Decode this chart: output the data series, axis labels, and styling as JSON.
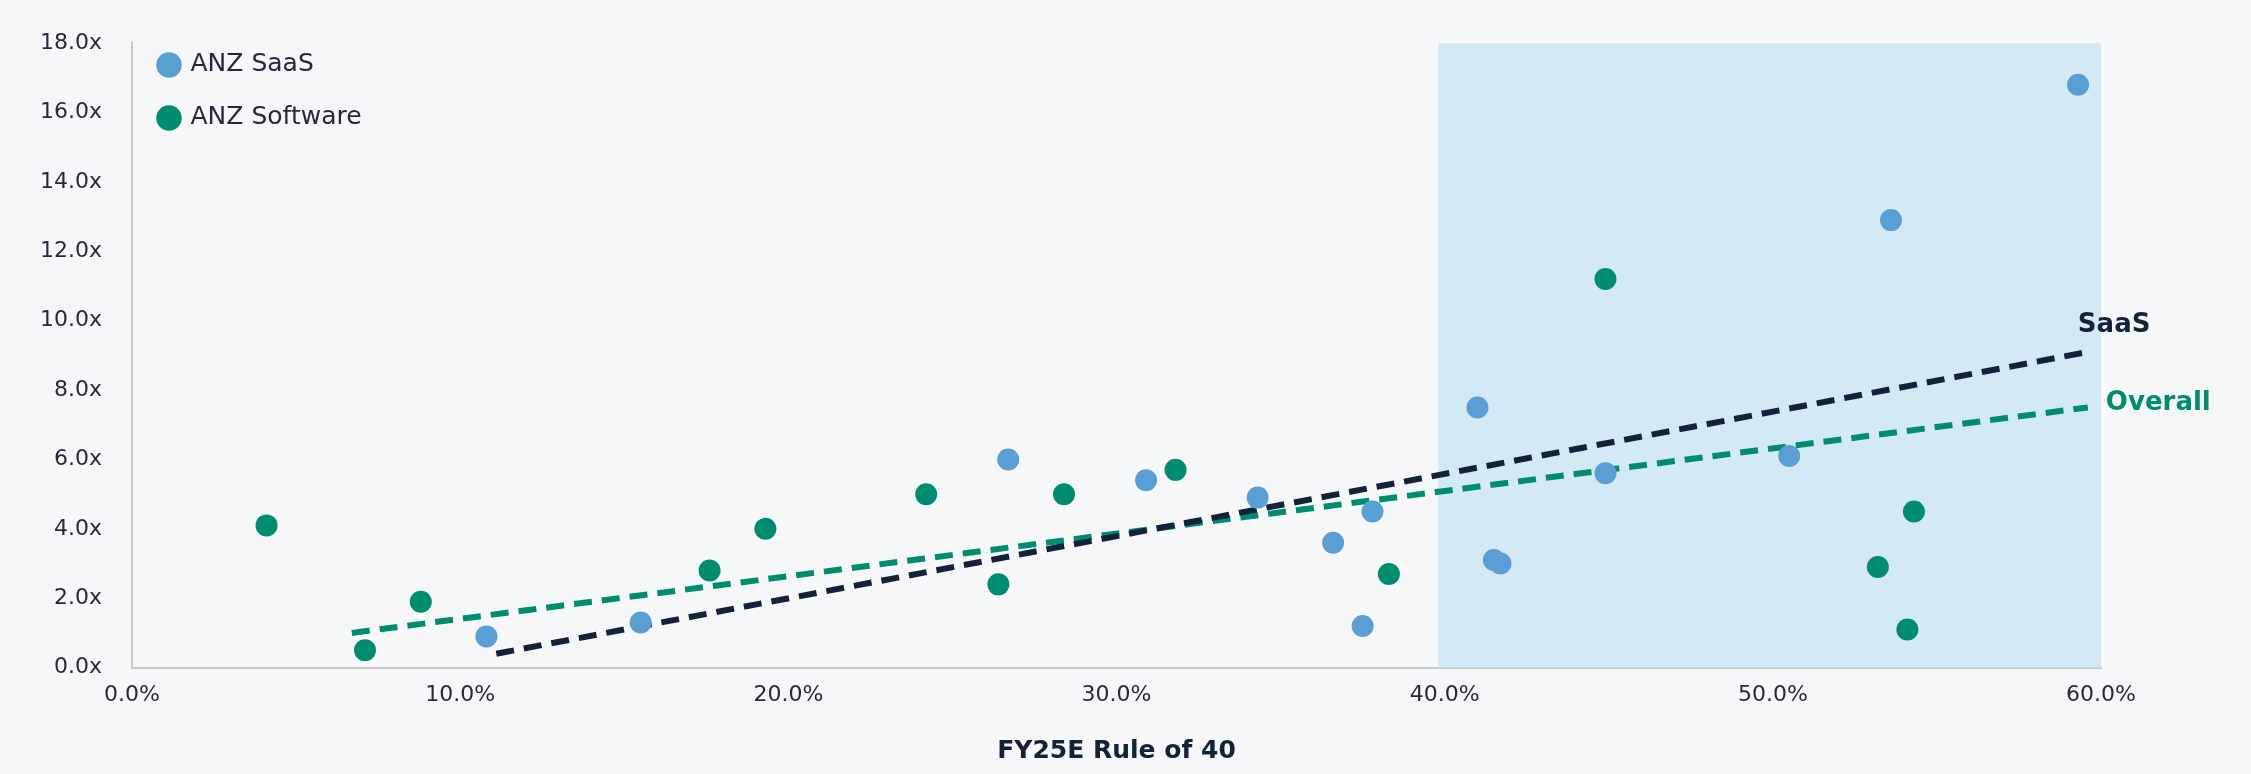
{
  "chart_data": {
    "type": "scatter",
    "xlabel": "FY25E Rule of 40",
    "xlim": [
      0,
      60
    ],
    "xticks": [
      {
        "value": 0,
        "label": "0.0%"
      },
      {
        "value": 10,
        "label": "10.0%"
      },
      {
        "value": 20,
        "label": "20.0%"
      },
      {
        "value": 30,
        "label": "30.0%"
      },
      {
        "value": 40,
        "label": "40.0%"
      },
      {
        "value": 50,
        "label": "50.0%"
      },
      {
        "value": 60,
        "label": "60.0%"
      }
    ],
    "ylim": [
      0,
      18
    ],
    "yticks": [
      {
        "value": 0,
        "label": "0.0x"
      },
      {
        "value": 2,
        "label": "2.0x"
      },
      {
        "value": 4,
        "label": "4.0x"
      },
      {
        "value": 6,
        "label": "6.0x"
      },
      {
        "value": 8,
        "label": "8.0x"
      },
      {
        "value": 10,
        "label": "10.0x"
      },
      {
        "value": 12,
        "label": "12.0x"
      },
      {
        "value": 14,
        "label": "14.0x"
      },
      {
        "value": 16,
        "label": "16.0x"
      },
      {
        "value": 18,
        "label": "18.0x"
      }
    ],
    "grid": false,
    "legend": "top left",
    "marker": "circle",
    "bands": [
      {
        "axis": "x",
        "from": 39.8,
        "to": 60,
        "color": "#d3e9f5"
      }
    ],
    "series": [
      {
        "name": "ANZ SaaS",
        "color": "#5a9fd4",
        "x": [
          10.8,
          15.5,
          26.7,
          30.9,
          34.3,
          36.6,
          37.5,
          37.8,
          41.0,
          41.5,
          41.7,
          44.9,
          50.5,
          53.6,
          59.3
        ],
        "values": [
          0.9,
          1.3,
          6.0,
          5.4,
          4.9,
          3.6,
          1.2,
          4.5,
          7.5,
          3.1,
          3.0,
          5.6,
          6.1,
          12.9,
          16.8
        ]
      },
      {
        "name": "ANZ Software",
        "color": "#008c6e",
        "x": [
          4.1,
          7.1,
          8.8,
          17.6,
          19.3,
          24.2,
          26.4,
          28.4,
          31.8,
          38.3,
          44.9,
          53.2,
          54.1,
          54.3
        ],
        "values": [
          4.1,
          0.5,
          1.9,
          2.8,
          4.0,
          5.0,
          2.4,
          5.0,
          5.7,
          2.7,
          11.2,
          2.9,
          1.1,
          4.5
        ]
      },
      {
        "name": "SaaS",
        "type": "line",
        "color": "#13223a",
        "marker": "none",
        "line_style": "dashed",
        "x": [
          11.1,
          59.6
        ],
        "values": [
          0.4,
          9.1
        ]
      },
      {
        "name": "Overall",
        "type": "line",
        "color": "#008c6e",
        "marker": "none",
        "line_style": "dashed",
        "x": [
          6.7,
          59.6
        ],
        "values": [
          1.0,
          7.5
        ]
      }
    ]
  }
}
